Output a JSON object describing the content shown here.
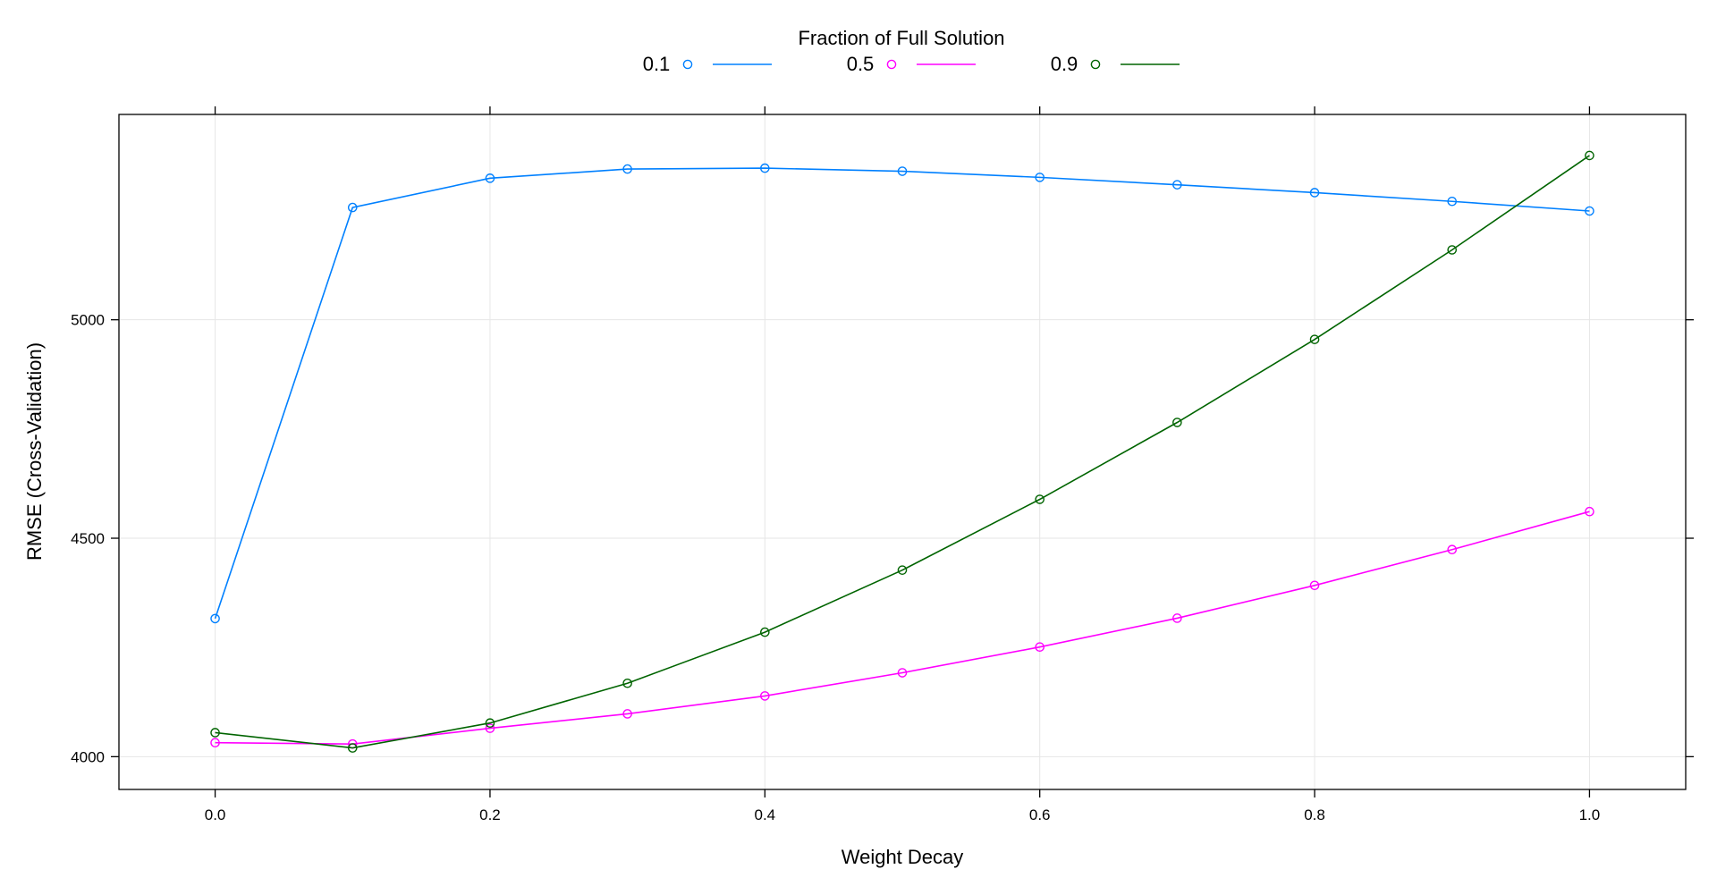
{
  "chart_data": {
    "type": "line",
    "title": "",
    "xlabel": "Weight Decay",
    "ylabel": "RMSE (Cross-Validation)",
    "xlim": [
      -0.07,
      1.07
    ],
    "ylim": [
      3925,
      5470
    ],
    "x_ticks": [
      0.0,
      0.2,
      0.4,
      0.6,
      0.8,
      1.0
    ],
    "x_tick_labels": [
      "0.0",
      "0.2",
      "0.4",
      "0.6",
      "0.8",
      "1.0"
    ],
    "y_ticks": [
      4000,
      4500,
      5000
    ],
    "y_tick_labels": [
      "4000",
      "4500",
      "5000"
    ],
    "grid": true,
    "legend": {
      "title": "Fraction of Full Solution",
      "placement": "top",
      "markers": "circle-and-line"
    },
    "x": [
      0.0,
      0.1,
      0.2,
      0.3,
      0.4,
      0.5,
      0.6,
      0.7,
      0.8,
      0.9,
      1.0
    ],
    "series": [
      {
        "name": "0.1",
        "color": "#0080ff",
        "values": [
          4316,
          5257,
          5324,
          5345,
          5347,
          5340,
          5326,
          5309,
          5291,
          5271,
          5249
        ]
      },
      {
        "name": "0.5",
        "color": "#ff00ff",
        "values": [
          4032,
          4029,
          4065,
          4098,
          4139,
          4192,
          4251,
          4317,
          4392,
          4474,
          4561
        ]
      },
      {
        "name": "0.9",
        "color": "#006400",
        "values": [
          4055,
          4020,
          4077,
          4168,
          4285,
          4427,
          4589,
          4765,
          4955,
          5160,
          5376
        ]
      }
    ]
  }
}
